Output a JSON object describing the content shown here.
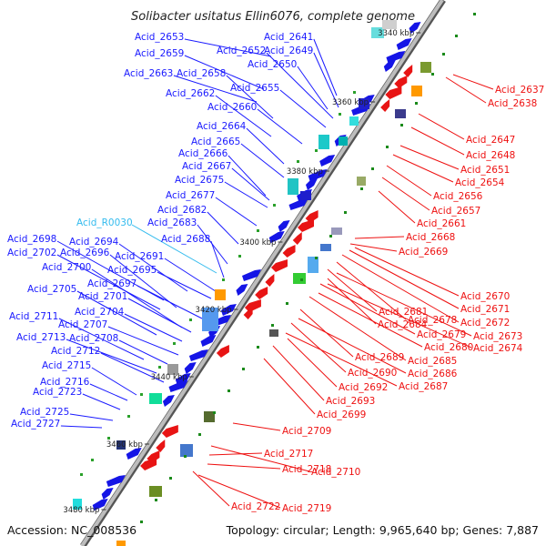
{
  "title": "Solibacter usitatus Ellin6076, complete genome",
  "footer": {
    "accession": "Accession: NC_008536",
    "summary": "Topology: circular; Length: 9,965,640 bp; Genes: 7,887"
  },
  "colors": {
    "plus_label": "#1a1aff",
    "minus_label": "#ee1111",
    "rna_label": "#33bbee",
    "backbone": "#999999",
    "plus_gene": "#1515e6",
    "minus_gene": "#e81414"
  },
  "ticks": [
    "3340 kbp",
    "3360 kbp",
    "3380 kbp",
    "3400 kbp",
    "3420 kbp",
    "3440 kbp",
    "3460 kbp",
    "3480 kbp"
  ],
  "plus_labels": [
    "Acid_2653",
    "Acid_2641",
    "Acid_2649",
    "Acid_2652",
    "Acid_2659",
    "Acid_2650",
    "Acid_2663",
    "Acid_2658",
    "Acid_2655",
    "Acid_2662",
    "Acid_2660",
    "Acid_2664",
    "Acid_2665",
    "Acid_2666",
    "Acid_2667",
    "Acid_2675",
    "Acid_2677",
    "Acid_2682",
    "Acid_R0030",
    "Acid_2683",
    "Acid_2688",
    "Acid_2698",
    "Acid_2694",
    "Acid_2702",
    "Acid_2696",
    "Acid_2691",
    "Acid_2700",
    "Acid_2695",
    "Acid_2697",
    "Acid_2705",
    "Acid_2701",
    "Acid_2704",
    "Acid_2711",
    "Acid_2707",
    "Acid_2713",
    "Acid_2708",
    "Acid_2712",
    "Acid_2715",
    "Acid_2716",
    "Acid_2723",
    "Acid_2725",
    "Acid_2727"
  ],
  "minus_labels": [
    "Acid_2637",
    "Acid_2638",
    "Acid_2647",
    "Acid_2648",
    "Acid_2651",
    "Acid_2654",
    "Acid_2656",
    "Acid_2657",
    "Acid_2661",
    "Acid_2668",
    "Acid_2669",
    "Acid_2670",
    "Acid_2671",
    "Acid_2672",
    "Acid_2678",
    "Acid_2681",
    "Acid_2684",
    "Acid_2673",
    "Acid_2679",
    "Acid_2674",
    "Acid_2680",
    "Acid_2685",
    "Acid_2689",
    "Acid_2686",
    "Acid_2690",
    "Acid_2687",
    "Acid_2692",
    "Acid_2693",
    "Acid_2699",
    "Acid_2709",
    "Acid_2717",
    "Acid_2718",
    "Acid_2710",
    "Acid_2722",
    "Acid_2719"
  ]
}
